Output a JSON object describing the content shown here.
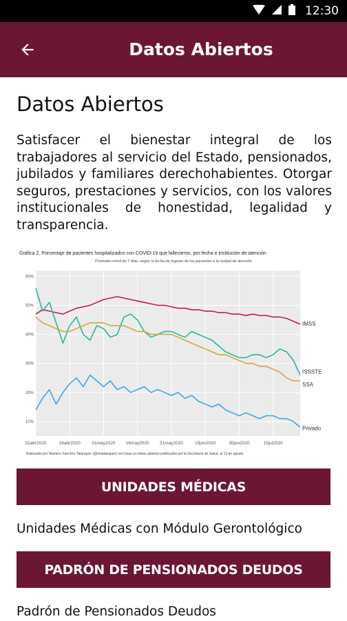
{
  "status_bar": {
    "time": "12:30",
    "icons": [
      "wifi-icon",
      "signal-icon",
      "battery-icon"
    ]
  },
  "app_bar": {
    "title": "Datos Abiertos",
    "back_icon": "arrow-left-icon"
  },
  "page": {
    "title": "Datos Abiertos",
    "description": "Satisfacer el bienestar integral de los trabajadores al servicio del Estado, pensionados, jubilados y familiares derechohabientes. Otorgar seguros, prestaciones y servicios, con los valores institucionales de honestidad, legalidad y transparencia."
  },
  "chart_data": {
    "type": "line",
    "title": "Gráfica 2. Porcentaje de pacientes hospitalizados con COVID-19 que fallecieron, por fecha e institución de atención",
    "subtitle": "Promedio móvil de 7 días, según la fecha de ingreso de los pacientes a la unidad de atención",
    "caption": "Elaborado por Mariano Sánchez Talanquer (@mstalanquer) con base en datos abiertos publicados por la Secretaría de Salud, al 13 de agosto",
    "x_start": "2020-04-01",
    "x_ticks": [
      "01abr2020",
      "16abr2020",
      "01may2020",
      "16may2020",
      "31may2020",
      "15jun2020",
      "30jun2020",
      "15jul2020"
    ],
    "y_ticks": [
      "10%",
      "20%",
      "30%",
      "40%",
      "50%",
      "60%"
    ],
    "ylim": [
      5,
      62
    ],
    "grid": true,
    "legend": "line-end labels",
    "series": [
      {
        "name": "IMSS",
        "color": "#c2185b",
        "x": [
          "2020-04-01",
          "2020-04-04",
          "2020-04-07",
          "2020-04-10",
          "2020-04-13",
          "2020-04-16",
          "2020-04-19",
          "2020-04-22",
          "2020-04-25",
          "2020-04-28",
          "2020-05-01",
          "2020-05-04",
          "2020-05-07",
          "2020-05-10",
          "2020-05-13",
          "2020-05-16",
          "2020-05-19",
          "2020-05-22",
          "2020-05-25",
          "2020-05-28",
          "2020-05-31",
          "2020-06-03",
          "2020-06-06",
          "2020-06-09",
          "2020-06-12",
          "2020-06-15",
          "2020-06-18",
          "2020-06-21",
          "2020-06-24",
          "2020-06-27",
          "2020-06-30",
          "2020-07-03",
          "2020-07-06",
          "2020-07-09",
          "2020-07-12",
          "2020-07-15",
          "2020-07-18",
          "2020-07-21",
          "2020-07-24",
          "2020-07-27"
        ],
        "values": [
          47,
          48.5,
          48,
          47.5,
          47,
          48,
          49,
          49.5,
          50,
          51,
          52,
          52.5,
          53,
          52.5,
          52,
          51.5,
          51,
          50.5,
          50,
          50,
          49.5,
          49,
          49,
          48.5,
          48.5,
          48,
          48,
          47.5,
          47.5,
          47,
          47,
          46.5,
          47,
          46.5,
          46.5,
          46,
          46,
          45.5,
          44.5,
          43.5
        ]
      },
      {
        "name": "ISSSTE",
        "color": "#26b5a3",
        "x": [
          "2020-04-01",
          "2020-04-04",
          "2020-04-07",
          "2020-04-10",
          "2020-04-13",
          "2020-04-16",
          "2020-04-19",
          "2020-04-22",
          "2020-04-25",
          "2020-04-28",
          "2020-05-01",
          "2020-05-04",
          "2020-05-07",
          "2020-05-10",
          "2020-05-13",
          "2020-05-16",
          "2020-05-19",
          "2020-05-22",
          "2020-05-25",
          "2020-05-28",
          "2020-05-31",
          "2020-06-03",
          "2020-06-06",
          "2020-06-09",
          "2020-06-12",
          "2020-06-15",
          "2020-06-18",
          "2020-06-21",
          "2020-06-24",
          "2020-06-27",
          "2020-06-30",
          "2020-07-03",
          "2020-07-06",
          "2020-07-09",
          "2020-07-12",
          "2020-07-15",
          "2020-07-18",
          "2020-07-21",
          "2020-07-24",
          "2020-07-27"
        ],
        "values": [
          56,
          48,
          51,
          44,
          37,
          43,
          46,
          40,
          38,
          43,
          42,
          39,
          40,
          46,
          47,
          45,
          41,
          39,
          40,
          41,
          41,
          40,
          39,
          41,
          40,
          39,
          38,
          36,
          34,
          33,
          32,
          32,
          33,
          33,
          32,
          33,
          35,
          34,
          31,
          26
        ]
      },
      {
        "name": "SSA",
        "color": "#d4a63a",
        "x": [
          "2020-04-01",
          "2020-04-04",
          "2020-04-07",
          "2020-04-10",
          "2020-04-13",
          "2020-04-16",
          "2020-04-19",
          "2020-04-22",
          "2020-04-25",
          "2020-04-28",
          "2020-05-01",
          "2020-05-04",
          "2020-05-07",
          "2020-05-10",
          "2020-05-13",
          "2020-05-16",
          "2020-05-19",
          "2020-05-22",
          "2020-05-25",
          "2020-05-28",
          "2020-05-31",
          "2020-06-03",
          "2020-06-06",
          "2020-06-09",
          "2020-06-12",
          "2020-06-15",
          "2020-06-18",
          "2020-06-21",
          "2020-06-24",
          "2020-06-27",
          "2020-06-30",
          "2020-07-03",
          "2020-07-06",
          "2020-07-09",
          "2020-07-12",
          "2020-07-15",
          "2020-07-18",
          "2020-07-21",
          "2020-07-24",
          "2020-07-27"
        ],
        "values": [
          46,
          44,
          43,
          42,
          41,
          41,
          42,
          43,
          44,
          44,
          44,
          43,
          43,
          43,
          42,
          41,
          41,
          40,
          40,
          40,
          40,
          39,
          38,
          37,
          36,
          35,
          34,
          33,
          33,
          32,
          31,
          30,
          30,
          29,
          29,
          28,
          27,
          25,
          24,
          24
        ]
      },
      {
        "name": "Privado",
        "color": "#3aa7e0",
        "x": [
          "2020-04-01",
          "2020-04-04",
          "2020-04-07",
          "2020-04-10",
          "2020-04-13",
          "2020-04-16",
          "2020-04-19",
          "2020-04-22",
          "2020-04-25",
          "2020-04-28",
          "2020-05-01",
          "2020-05-04",
          "2020-05-07",
          "2020-05-10",
          "2020-05-13",
          "2020-05-16",
          "2020-05-19",
          "2020-05-22",
          "2020-05-25",
          "2020-05-28",
          "2020-05-31",
          "2020-06-03",
          "2020-06-06",
          "2020-06-09",
          "2020-06-12",
          "2020-06-15",
          "2020-06-18",
          "2020-06-21",
          "2020-06-24",
          "2020-06-27",
          "2020-06-30",
          "2020-07-03",
          "2020-07-06",
          "2020-07-09",
          "2020-07-12",
          "2020-07-15",
          "2020-07-18",
          "2020-07-21",
          "2020-07-24",
          "2020-07-27"
        ],
        "values": [
          14,
          18,
          21,
          16,
          20,
          23,
          25,
          22,
          26,
          24,
          22,
          24,
          21,
          22,
          20,
          21,
          22,
          20,
          21,
          20,
          19,
          20,
          18,
          19,
          17,
          16,
          15,
          16,
          14,
          13,
          12,
          13,
          12,
          11,
          12,
          12,
          11,
          11,
          10,
          8
        ]
      }
    ]
  },
  "sections": [
    {
      "button_label": "UNIDADES MÉDICAS",
      "link_label": "Unidades Médicas con Módulo Gerontológico"
    },
    {
      "button_label": "PADRÓN DE PENSIONADOS DEUDOS",
      "link_label": "Padrón de Pensionados Deudos"
    }
  ]
}
